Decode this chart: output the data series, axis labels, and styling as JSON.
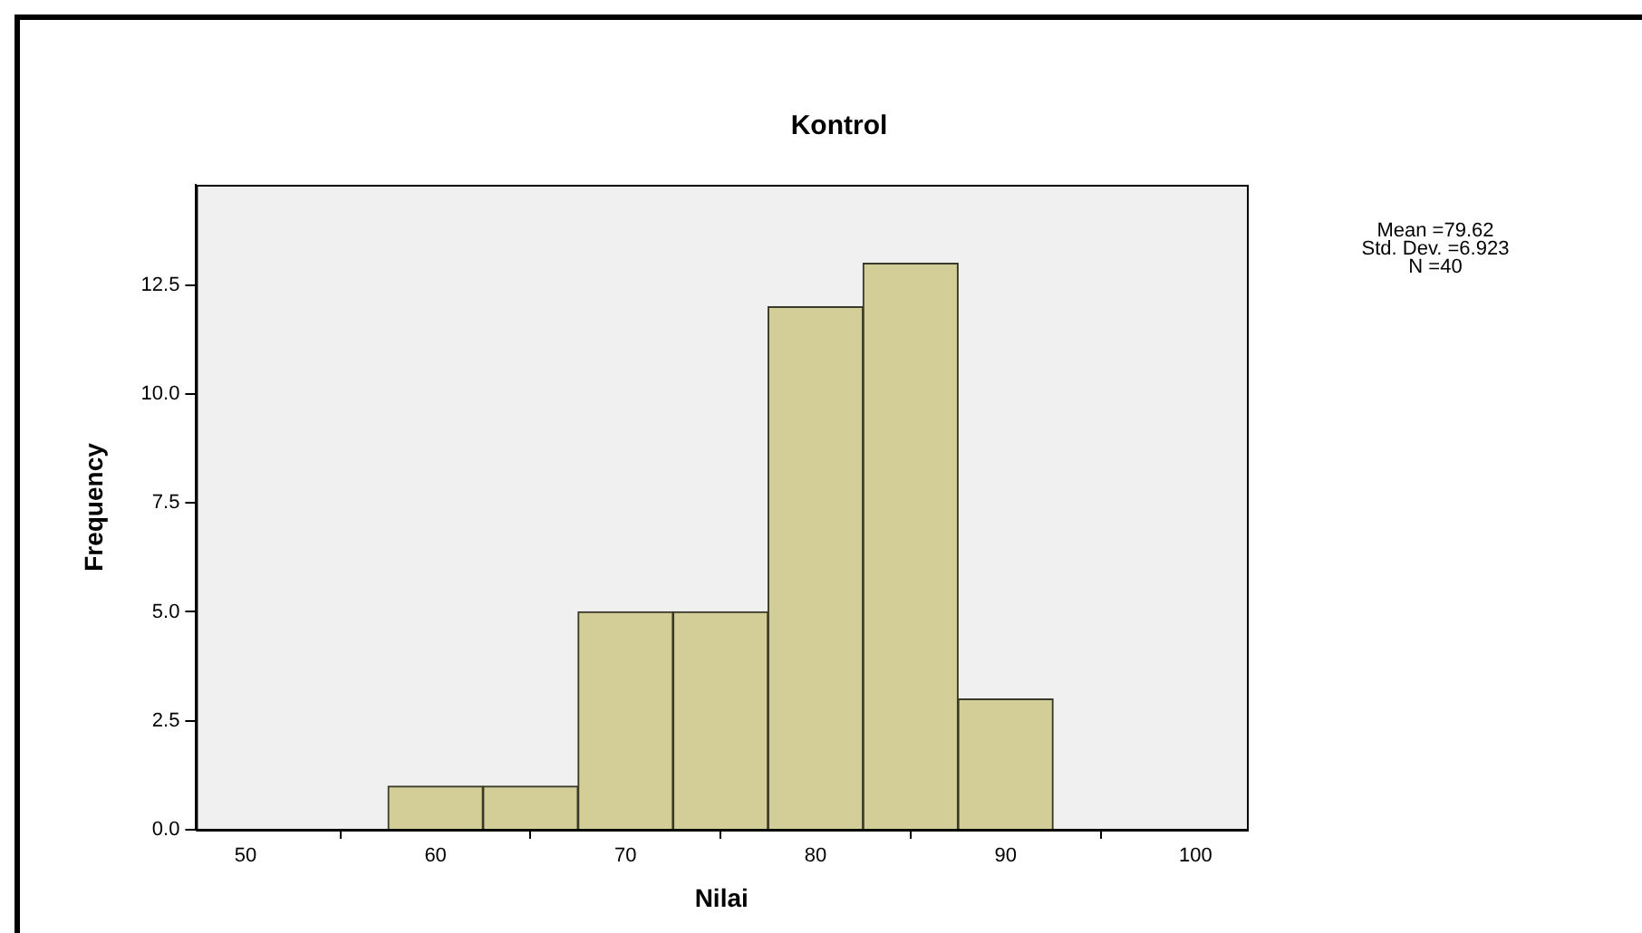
{
  "chart_data": {
    "type": "histogram",
    "title": "Kontrol",
    "xlabel": "Nilai",
    "ylabel": "Frequency",
    "bins": [
      57.5,
      62.5,
      67.5,
      72.5,
      77.5,
      82.5,
      87.5,
      92.5
    ],
    "values": [
      1,
      1,
      5,
      5,
      12,
      13,
      3
    ],
    "color": "#d3ce97",
    "xlim": [
      47.4,
      102.7
    ],
    "xticks": [
      50,
      60,
      70,
      80,
      90,
      100
    ],
    "ylim": [
      0,
      14.8
    ],
    "yticks": [
      {
        "value": 0,
        "label": "0.0"
      },
      {
        "value": 2.5,
        "label": "2.5"
      },
      {
        "value": 5,
        "label": "5.0"
      },
      {
        "value": 7.5,
        "label": "7.5"
      },
      {
        "value": 10,
        "label": "10.0"
      },
      {
        "value": 12.5,
        "label": "12.5"
      }
    ],
    "grid": false,
    "legend": false,
    "annotations": [
      "Mean =79.62",
      "Std. Dev. =6.923",
      "N =40"
    ]
  }
}
